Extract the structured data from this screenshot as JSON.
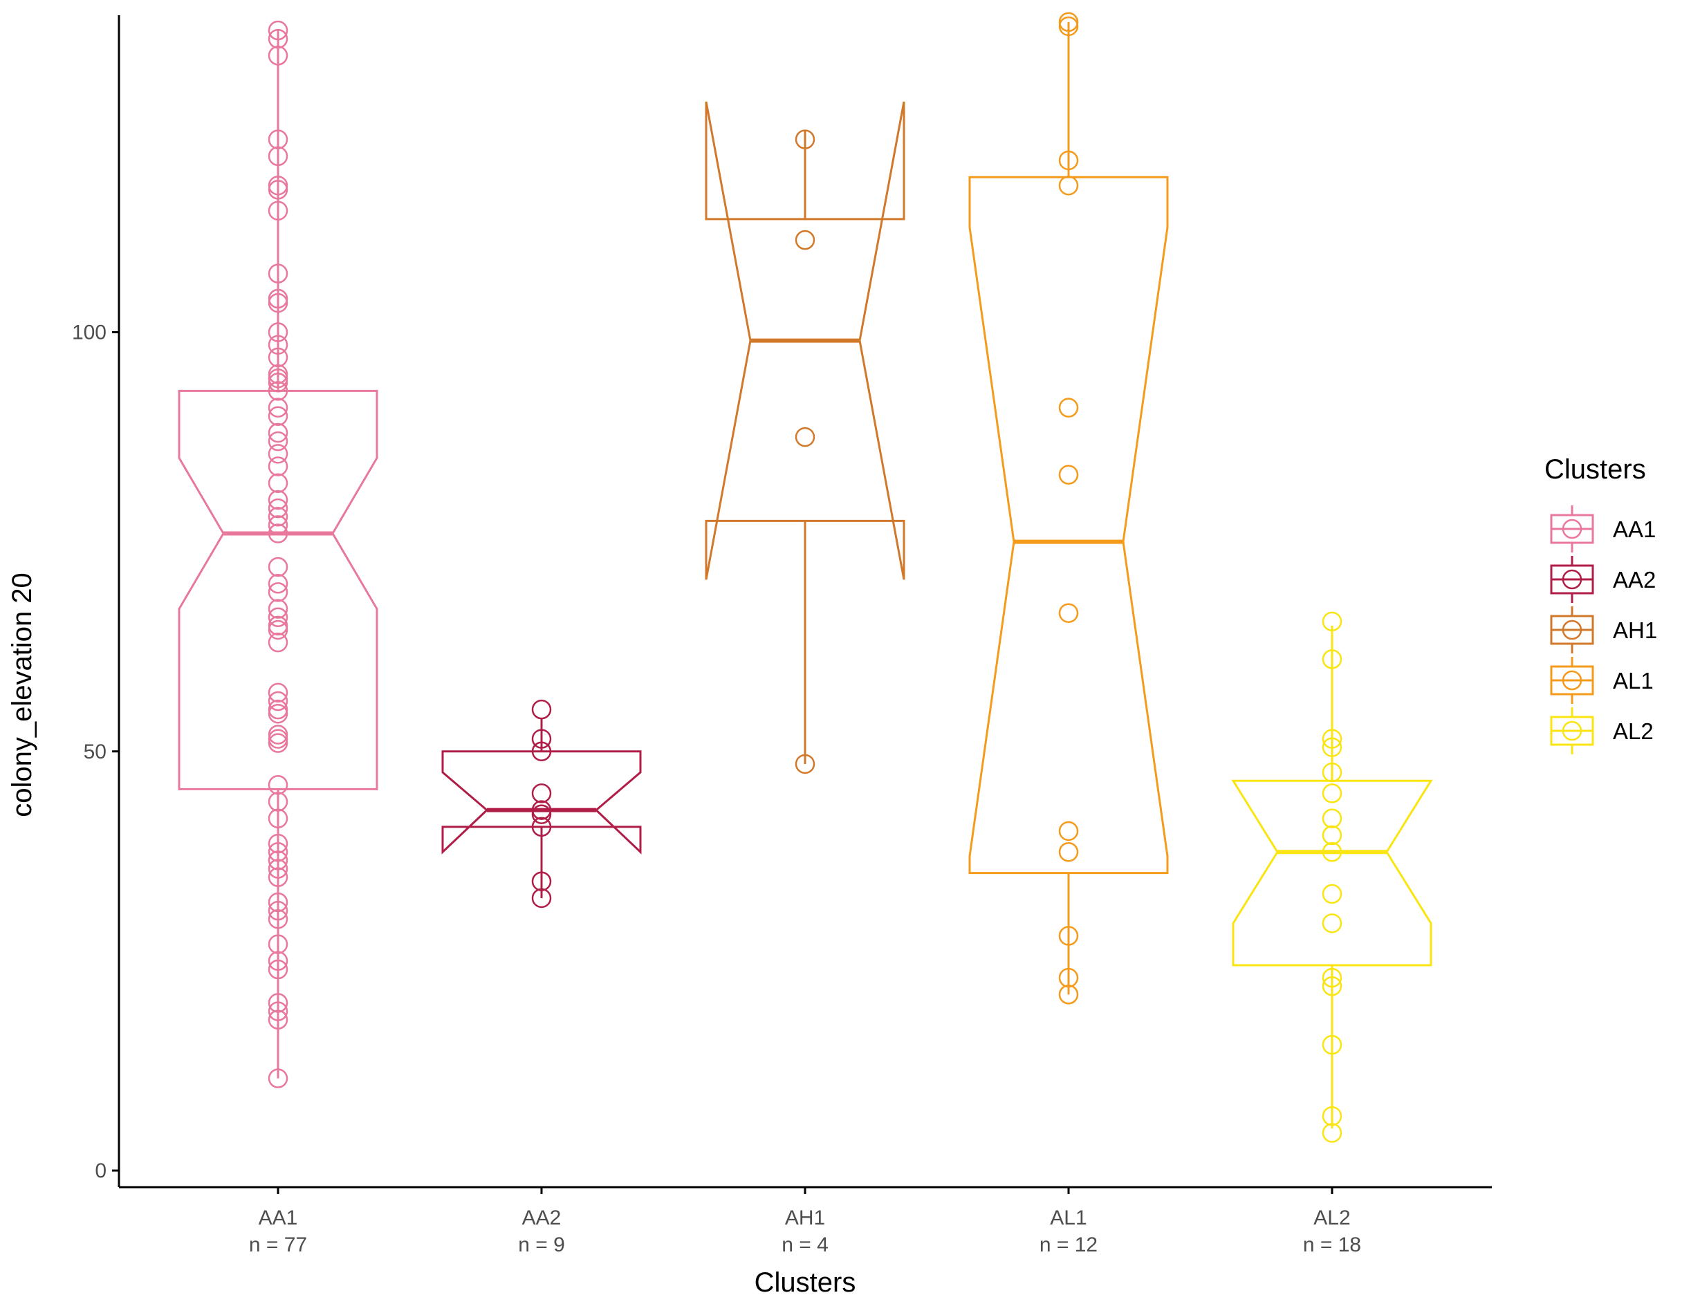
{
  "chart_data": {
    "type": "boxplot",
    "xlabel": "Clusters",
    "ylabel": "colony_elevation 20",
    "ylim": [
      -2,
      139
    ],
    "yticks": [
      0,
      50,
      100
    ],
    "grid": false,
    "legend": {
      "title": "Clusters",
      "placement": "right"
    },
    "categories": [
      {
        "name": "AA1",
        "count_label": "n = 77",
        "color": "#E8789C",
        "q1": 45.5,
        "median": 76,
        "q3": 93,
        "notch_low": 67,
        "notch_high": 85,
        "whisker_low": 11,
        "whisker_high": 136,
        "points": [
          11,
          18,
          19,
          20,
          24,
          25,
          27,
          30,
          31,
          32,
          35,
          36,
          37,
          38,
          39,
          42,
          44,
          46,
          51,
          51.5,
          52,
          54.5,
          55,
          56,
          57,
          63,
          64.5,
          65,
          66,
          67,
          69,
          70,
          72,
          76,
          77,
          78,
          79,
          80,
          82,
          84,
          85.5,
          87,
          88,
          90,
          91,
          93,
          94,
          94.5,
          95,
          97,
          98.5,
          100,
          103.5,
          104,
          107,
          114.5,
          117,
          117.5,
          121,
          123,
          133,
          135,
          136
        ]
      },
      {
        "name": "AA2",
        "count_label": "n = 9",
        "color": "#B01E48",
        "q1": 41,
        "median": 43,
        "q3": 50,
        "notch_low": 38,
        "notch_high": 47.5,
        "whisker_low": 32.5,
        "whisker_high": 54,
        "points": [
          32.5,
          34.5,
          41,
          42.5,
          43,
          45,
          50,
          51.5,
          55
        ]
      },
      {
        "name": "AH1",
        "count_label": "n = 4",
        "color": "#D2782A",
        "q1": 77.5,
        "median": 99,
        "q3": 113.5,
        "notch_low": 70.5,
        "notch_high": 127.5,
        "whisker_low": 48.5,
        "whisker_high": 124,
        "points": [
          48.5,
          87.5,
          111,
          123
        ]
      },
      {
        "name": "AL1",
        "count_label": "n = 12",
        "color": "#F49B1C",
        "q1": 35.5,
        "median": 75,
        "q3": 118.5,
        "notch_low": 37.5,
        "notch_high": 112.5,
        "whisker_low": 21,
        "whisker_high": 137,
        "points": [
          21,
          23,
          28,
          38,
          40.5,
          66.5,
          83,
          91,
          117.5,
          120.5,
          136.5,
          137
        ]
      },
      {
        "name": "AL2",
        "count_label": "n = 18",
        "color": "#FAE512",
        "q1": 24.5,
        "median": 38,
        "q3": 46.5,
        "notch_low": 29.5,
        "notch_high": 46.5,
        "whisker_low": 5,
        "whisker_high": 65,
        "points": [
          4.5,
          6.5,
          15,
          22,
          23,
          29.5,
          33,
          38,
          40,
          42,
          45,
          47.5,
          50.5,
          51.5,
          61,
          65.5
        ]
      }
    ]
  }
}
